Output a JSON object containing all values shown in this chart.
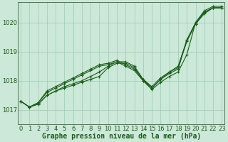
{
  "title": "Graphe pression niveau de la mer (hPa)",
  "background_color": "#cce8d8",
  "plot_bg_color": "#cce8d8",
  "grid_color": "#99ccb0",
  "line_color": "#1a5c1a",
  "ylim": [
    1016.5,
    1020.7
  ],
  "yticks": [
    1017,
    1018,
    1019,
    1020
  ],
  "xlim": [
    -0.3,
    23.3
  ],
  "xticks": [
    0,
    1,
    2,
    3,
    4,
    5,
    6,
    7,
    8,
    9,
    10,
    11,
    12,
    13,
    14,
    15,
    16,
    17,
    18,
    19,
    20,
    21,
    22,
    23
  ],
  "series": [
    [
      1017.3,
      1017.1,
      1017.2,
      1017.5,
      1017.65,
      1017.75,
      1017.85,
      1017.95,
      1018.05,
      1018.15,
      1018.45,
      1018.6,
      1018.6,
      1018.45,
      1018.0,
      1017.7,
      1017.95,
      1018.15,
      1018.3,
      1018.9,
      1020.0,
      1020.35,
      1020.5,
      1020.5
    ],
    [
      1017.3,
      1017.1,
      1017.2,
      1017.5,
      1017.65,
      1017.8,
      1017.9,
      1018.0,
      1018.15,
      1018.3,
      1018.5,
      1018.65,
      1018.65,
      1018.5,
      1018.05,
      1017.75,
      1018.05,
      1018.25,
      1018.4,
      1019.4,
      1019.95,
      1020.3,
      1020.5,
      1020.5
    ],
    [
      1017.3,
      1017.1,
      1017.25,
      1017.6,
      1017.75,
      1017.9,
      1018.05,
      1018.2,
      1018.35,
      1018.5,
      1018.55,
      1018.65,
      1018.5,
      1018.35,
      1018.0,
      1017.75,
      1018.05,
      1018.3,
      1018.45,
      1019.35,
      1019.95,
      1020.35,
      1020.5,
      1020.5
    ],
    [
      1017.3,
      1017.1,
      1017.25,
      1017.65,
      1017.8,
      1017.95,
      1018.1,
      1018.25,
      1018.4,
      1018.55,
      1018.6,
      1018.7,
      1018.55,
      1018.4,
      1018.05,
      1017.8,
      1018.1,
      1018.3,
      1018.5,
      1019.4,
      1020.0,
      1020.4,
      1020.55,
      1020.55
    ]
  ],
  "marker_size": 2.5,
  "line_width": 0.8,
  "font_color": "#1a5c1a",
  "xlabel_fontsize": 7,
  "tick_fontsize": 6
}
